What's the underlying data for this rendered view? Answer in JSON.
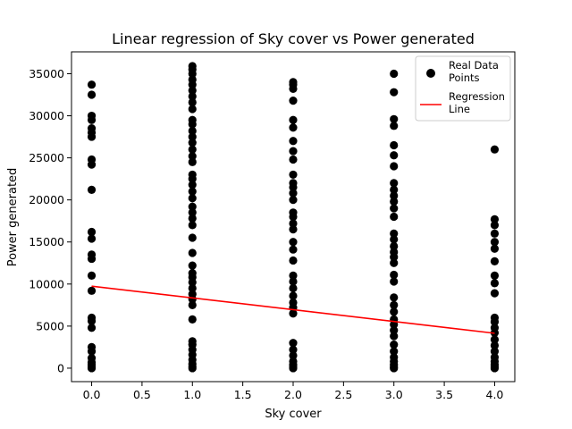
{
  "chart_data": {
    "type": "scatter",
    "title": "Linear regression of Sky cover vs Power generated",
    "xlabel": "Sky cover",
    "ylabel": "Power generated",
    "xlim": [
      -0.2,
      4.2
    ],
    "ylim": [
      -1600,
      37600
    ],
    "xticks": [
      0.0,
      0.5,
      1.0,
      1.5,
      2.0,
      2.5,
      3.0,
      3.5,
      4.0
    ],
    "xtick_labels": [
      "0.0",
      "0.5",
      "1.0",
      "1.5",
      "2.0",
      "2.5",
      "3.0",
      "3.5",
      "4.0"
    ],
    "yticks": [
      0,
      5000,
      10000,
      15000,
      20000,
      25000,
      30000,
      35000
    ],
    "ytick_labels": [
      "0",
      "5000",
      "10000",
      "15000",
      "20000",
      "25000",
      "30000",
      "35000"
    ],
    "grid": false,
    "legend_placement": "top-right",
    "series": [
      {
        "name": "Real Data\n Points",
        "type": "scatter",
        "color": "#000000",
        "points": [
          [
            0,
            0
          ],
          [
            0,
            150
          ],
          [
            0,
            400
          ],
          [
            0,
            700
          ],
          [
            0,
            1200
          ],
          [
            0,
            2000
          ],
          [
            0,
            2500
          ],
          [
            0,
            4800
          ],
          [
            0,
            5600
          ],
          [
            0,
            6000
          ],
          [
            0,
            9200
          ],
          [
            0,
            11000
          ],
          [
            0,
            13000
          ],
          [
            0,
            13500
          ],
          [
            0,
            15400
          ],
          [
            0,
            16200
          ],
          [
            0,
            21200
          ],
          [
            0,
            24200
          ],
          [
            0,
            24800
          ],
          [
            0,
            27500
          ],
          [
            0,
            28000
          ],
          [
            0,
            28500
          ],
          [
            0,
            29500
          ],
          [
            0,
            30000
          ],
          [
            0,
            32500
          ],
          [
            0,
            33700
          ],
          [
            1,
            0
          ],
          [
            1,
            200
          ],
          [
            1,
            500
          ],
          [
            1,
            1000
          ],
          [
            1,
            1600
          ],
          [
            1,
            2200
          ],
          [
            1,
            2800
          ],
          [
            1,
            3200
          ],
          [
            1,
            5800
          ],
          [
            1,
            7500
          ],
          [
            1,
            8200
          ],
          [
            1,
            8800
          ],
          [
            1,
            9500
          ],
          [
            1,
            10200
          ],
          [
            1,
            10800
          ],
          [
            1,
            11300
          ],
          [
            1,
            12200
          ],
          [
            1,
            13700
          ],
          [
            1,
            15500
          ],
          [
            1,
            17000
          ],
          [
            1,
            17800
          ],
          [
            1,
            18500
          ],
          [
            1,
            19200
          ],
          [
            1,
            20200
          ],
          [
            1,
            21000
          ],
          [
            1,
            21800
          ],
          [
            1,
            22500
          ],
          [
            1,
            23000
          ],
          [
            1,
            24500
          ],
          [
            1,
            25200
          ],
          [
            1,
            26000
          ],
          [
            1,
            26800
          ],
          [
            1,
            27500
          ],
          [
            1,
            28200
          ],
          [
            1,
            29000
          ],
          [
            1,
            29500
          ],
          [
            1,
            30800
          ],
          [
            1,
            31600
          ],
          [
            1,
            32300
          ],
          [
            1,
            33000
          ],
          [
            1,
            33700
          ],
          [
            1,
            34300
          ],
          [
            1,
            35000
          ],
          [
            1,
            35500
          ],
          [
            1,
            35900
          ],
          [
            2,
            0
          ],
          [
            2,
            150
          ],
          [
            2,
            400
          ],
          [
            2,
            800
          ],
          [
            2,
            1500
          ],
          [
            2,
            2200
          ],
          [
            2,
            3000
          ],
          [
            2,
            6500
          ],
          [
            2,
            7200
          ],
          [
            2,
            7800
          ],
          [
            2,
            8600
          ],
          [
            2,
            9500
          ],
          [
            2,
            10300
          ],
          [
            2,
            11000
          ],
          [
            2,
            12800
          ],
          [
            2,
            14100
          ],
          [
            2,
            15000
          ],
          [
            2,
            16500
          ],
          [
            2,
            17200
          ],
          [
            2,
            18000
          ],
          [
            2,
            18500
          ],
          [
            2,
            20000
          ],
          [
            2,
            20800
          ],
          [
            2,
            21500
          ],
          [
            2,
            22000
          ],
          [
            2,
            23000
          ],
          [
            2,
            24800
          ],
          [
            2,
            25800
          ],
          [
            2,
            27000
          ],
          [
            2,
            28600
          ],
          [
            2,
            29500
          ],
          [
            2,
            31800
          ],
          [
            2,
            33200
          ],
          [
            2,
            33700
          ],
          [
            2,
            34000
          ],
          [
            3,
            0
          ],
          [
            3,
            150
          ],
          [
            3,
            400
          ],
          [
            3,
            800
          ],
          [
            3,
            1300
          ],
          [
            3,
            2000
          ],
          [
            3,
            2800
          ],
          [
            3,
            3800
          ],
          [
            3,
            4500
          ],
          [
            3,
            5200
          ],
          [
            3,
            5800
          ],
          [
            3,
            6700
          ],
          [
            3,
            7500
          ],
          [
            3,
            8400
          ],
          [
            3,
            10300
          ],
          [
            3,
            11100
          ],
          [
            3,
            12500
          ],
          [
            3,
            13200
          ],
          [
            3,
            13800
          ],
          [
            3,
            14500
          ],
          [
            3,
            15300
          ],
          [
            3,
            16000
          ],
          [
            3,
            18000
          ],
          [
            3,
            19000
          ],
          [
            3,
            19800
          ],
          [
            3,
            20500
          ],
          [
            3,
            21200
          ],
          [
            3,
            22000
          ],
          [
            3,
            24000
          ],
          [
            3,
            25300
          ],
          [
            3,
            26500
          ],
          [
            3,
            28800
          ],
          [
            3,
            29600
          ],
          [
            3,
            32800
          ],
          [
            3,
            35000
          ],
          [
            4,
            0
          ],
          [
            4,
            150
          ],
          [
            4,
            400
          ],
          [
            4,
            800
          ],
          [
            4,
            1300
          ],
          [
            4,
            2000
          ],
          [
            4,
            2700
          ],
          [
            4,
            3400
          ],
          [
            4,
            4200
          ],
          [
            4,
            4800
          ],
          [
            4,
            5500
          ],
          [
            4,
            6000
          ],
          [
            4,
            8900
          ],
          [
            4,
            10100
          ],
          [
            4,
            11000
          ],
          [
            4,
            12700
          ],
          [
            4,
            14200
          ],
          [
            4,
            15000
          ],
          [
            4,
            16000
          ],
          [
            4,
            17000
          ],
          [
            4,
            17700
          ],
          [
            4,
            26000
          ]
        ]
      },
      {
        "name": "Regression\n Line",
        "type": "line",
        "color": "#ff0000",
        "points": [
          [
            0,
            9750
          ],
          [
            4,
            4150
          ]
        ]
      }
    ]
  }
}
